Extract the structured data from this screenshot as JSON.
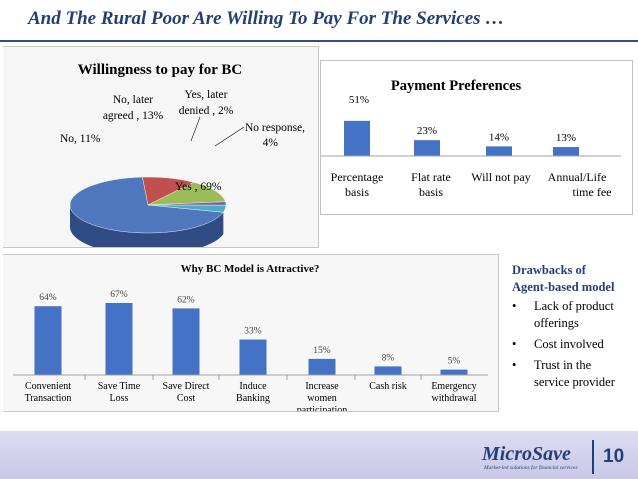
{
  "slide": {
    "title": "And The Rural Poor Are Willing To Pay For The Services …",
    "page_number": "10"
  },
  "drawbacks": {
    "heading_line1": "Drawbacks of",
    "heading_line2": "Agent-based model",
    "items": [
      {
        "line1": "Lack of product",
        "line2": "offerings"
      },
      {
        "line1": "Cost involved",
        "line2": ""
      },
      {
        "line1": "Trust in the",
        "line2": "service provider"
      }
    ]
  },
  "footer": {
    "logo": "MicroSave",
    "tagline": "Market-led solutions for financial services"
  },
  "colors": {
    "title": "#243f78",
    "bar_blue": "#4472c4",
    "pie_blue": "#4f77bd",
    "pie_red": "#c0504d",
    "pie_green": "#9bbb59",
    "pie_purple": "#8064a2",
    "pie_teal": "#4bacc6"
  },
  "chart_data": [
    {
      "type": "pie",
      "title": "Willingness to pay for BC",
      "categories": [
        "Yes",
        "No",
        "No, later agreed",
        "Yes, later denied",
        "No response"
      ],
      "values": [
        69,
        11,
        13,
        2,
        4
      ],
      "labels": [
        {
          "line1": "Yes , 69%",
          "line2": ""
        },
        {
          "line1": "No, 11%",
          "line2": ""
        },
        {
          "line1": "No, later",
          "line2": "agreed , 13%"
        },
        {
          "line1": "Yes, later",
          "line2": "denied , 2%"
        },
        {
          "line1": "No response,",
          "line2": "4%"
        }
      ]
    },
    {
      "type": "bar",
      "title": "Payment Preferences",
      "categories": [
        {
          "line1": "Percentage",
          "line2": "basis"
        },
        {
          "line1": "Flat rate",
          "line2": "basis"
        },
        {
          "line1": "Will not pay",
          "line2": ""
        },
        {
          "line1": "Annual/Life",
          "line2": "time fee"
        }
      ],
      "values": [
        51,
        23,
        14,
        13
      ],
      "value_labels": [
        "51%",
        "23%",
        "14%",
        "13%"
      ],
      "ylim": [
        0,
        100
      ]
    },
    {
      "type": "bar",
      "title": "Why BC Model is Attractive?",
      "categories": [
        {
          "line1": "Convenient",
          "line2": "Transaction",
          "line3": ""
        },
        {
          "line1": "Save Time",
          "line2": "Loss",
          "line3": ""
        },
        {
          "line1": "Save Direct",
          "line2": "Cost",
          "line3": ""
        },
        {
          "line1": "Induce",
          "line2": "Banking",
          "line3": ""
        },
        {
          "line1": "Increase",
          "line2": "women",
          "line3": "participation"
        },
        {
          "line1": "Cash risk",
          "line2": "",
          "line3": ""
        },
        {
          "line1": "Emergency",
          "line2": "withdrawal",
          "line3": ""
        }
      ],
      "values": [
        64,
        67,
        62,
        33,
        15,
        8,
        5
      ],
      "value_labels": [
        "64%",
        "67%",
        "62%",
        "33%",
        "15%",
        "8%",
        "5%"
      ],
      "ylim": [
        0,
        100
      ]
    }
  ]
}
